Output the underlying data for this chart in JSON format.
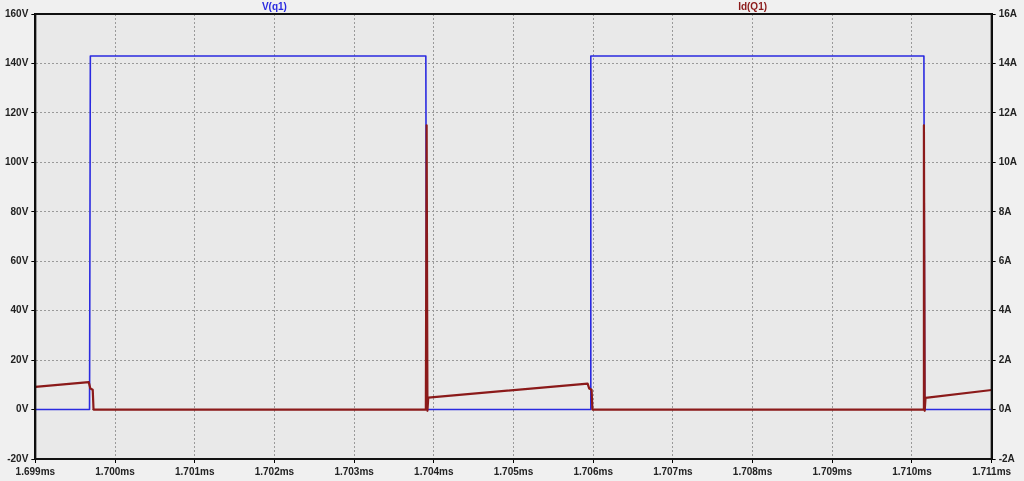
{
  "chart_data": {
    "type": "line",
    "legend": "top",
    "grid": true,
    "marker": "none",
    "line_style": "solid",
    "xlim": [
      1.699,
      1.711
    ],
    "xticks": [
      {
        "value": 1.699,
        "label": "1.699ms"
      },
      {
        "value": 1.7,
        "label": "1.700ms"
      },
      {
        "value": 1.701,
        "label": "1.701ms"
      },
      {
        "value": 1.702,
        "label": "1.702ms"
      },
      {
        "value": 1.703,
        "label": "1.703ms"
      },
      {
        "value": 1.704,
        "label": "1.704ms"
      },
      {
        "value": 1.705,
        "label": "1.705ms"
      },
      {
        "value": 1.706,
        "label": "1.706ms"
      },
      {
        "value": 1.707,
        "label": "1.707ms"
      },
      {
        "value": 1.708,
        "label": "1.708ms"
      },
      {
        "value": 1.709,
        "label": "1.709ms"
      },
      {
        "value": 1.71,
        "label": "1.710ms"
      },
      {
        "value": 1.711,
        "label": "1.711ms"
      }
    ],
    "ylim": [
      -20,
      160
    ],
    "yticks": [
      {
        "value": -20,
        "label": "-20V"
      },
      {
        "value": 0,
        "label": "0V"
      },
      {
        "value": 20,
        "label": "20V"
      },
      {
        "value": 40,
        "label": "40V"
      },
      {
        "value": 60,
        "label": "60V"
      },
      {
        "value": 80,
        "label": "80V"
      },
      {
        "value": 100,
        "label": "100V"
      },
      {
        "value": 120,
        "label": "120V"
      },
      {
        "value": 140,
        "label": "140V"
      },
      {
        "value": 160,
        "label": "160V"
      }
    ],
    "y2lim": [
      -2,
      16
    ],
    "y2ticks": [
      {
        "value": -2,
        "label": "-2A"
      },
      {
        "value": 0,
        "label": "0A"
      },
      {
        "value": 2,
        "label": "2A"
      },
      {
        "value": 4,
        "label": "4A"
      },
      {
        "value": 6,
        "label": "6A"
      },
      {
        "value": 8,
        "label": "8A"
      },
      {
        "value": 10,
        "label": "10A"
      },
      {
        "value": 12,
        "label": "12A"
      },
      {
        "value": 14,
        "label": "14A"
      },
      {
        "value": 16,
        "label": "16A"
      }
    ],
    "series": [
      {
        "name": "V(q1)",
        "color": "#2a2ae0",
        "x": [
          1.699,
          1.69968,
          1.69969,
          1.7039,
          1.70391,
          1.70596,
          1.70597,
          1.71015,
          1.71016,
          1.711
        ],
        "values": [
          0,
          0,
          143,
          143,
          0,
          0,
          143,
          143,
          0,
          0
        ]
      },
      {
        "name": "Id(Q1)",
        "color": "#8b1a1a",
        "axis": "y2",
        "x": [
          1.699,
          1.69967,
          1.69969,
          1.69972,
          1.69973,
          1.7039,
          1.70391,
          1.70392,
          1.70393,
          1.70593,
          1.70595,
          1.70598,
          1.70599,
          1.71014,
          1.71015,
          1.71016,
          1.71017,
          1.711
        ],
        "values": [
          0.92,
          1.11,
          0.85,
          0.8,
          0,
          0,
          11.5,
          -0.05,
          0.48,
          1.05,
          0.85,
          0.8,
          0,
          0,
          11.5,
          -0.05,
          0.47,
          0.79
        ]
      }
    ]
  }
}
